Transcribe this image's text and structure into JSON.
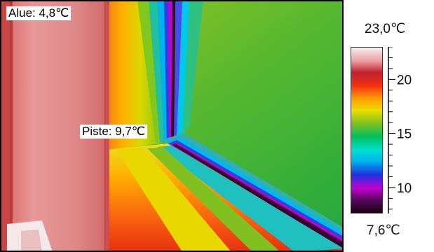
{
  "overlays": {
    "area_label": "Alue: 4,8℃",
    "spot_label": "Piste: 9,7℃"
  },
  "scale": {
    "max_label": "23,0℃",
    "min_label": "7,6℃",
    "max_value": 23.0,
    "min_value": 7.6,
    "tick_labels": [
      "20",
      "15",
      "10"
    ],
    "tick_values": [
      20,
      15,
      10
    ]
  },
  "colors": {
    "palette": [
      "#1a0010",
      "#5a0a60",
      "#c000d0",
      "#2030e0",
      "#00b0f0",
      "#00e0d0",
      "#00c060",
      "#7ac020",
      "#e8e000",
      "#ffa000",
      "#f03010",
      "#c02030",
      "#f0a0a0",
      "#f5f0f0"
    ]
  }
}
